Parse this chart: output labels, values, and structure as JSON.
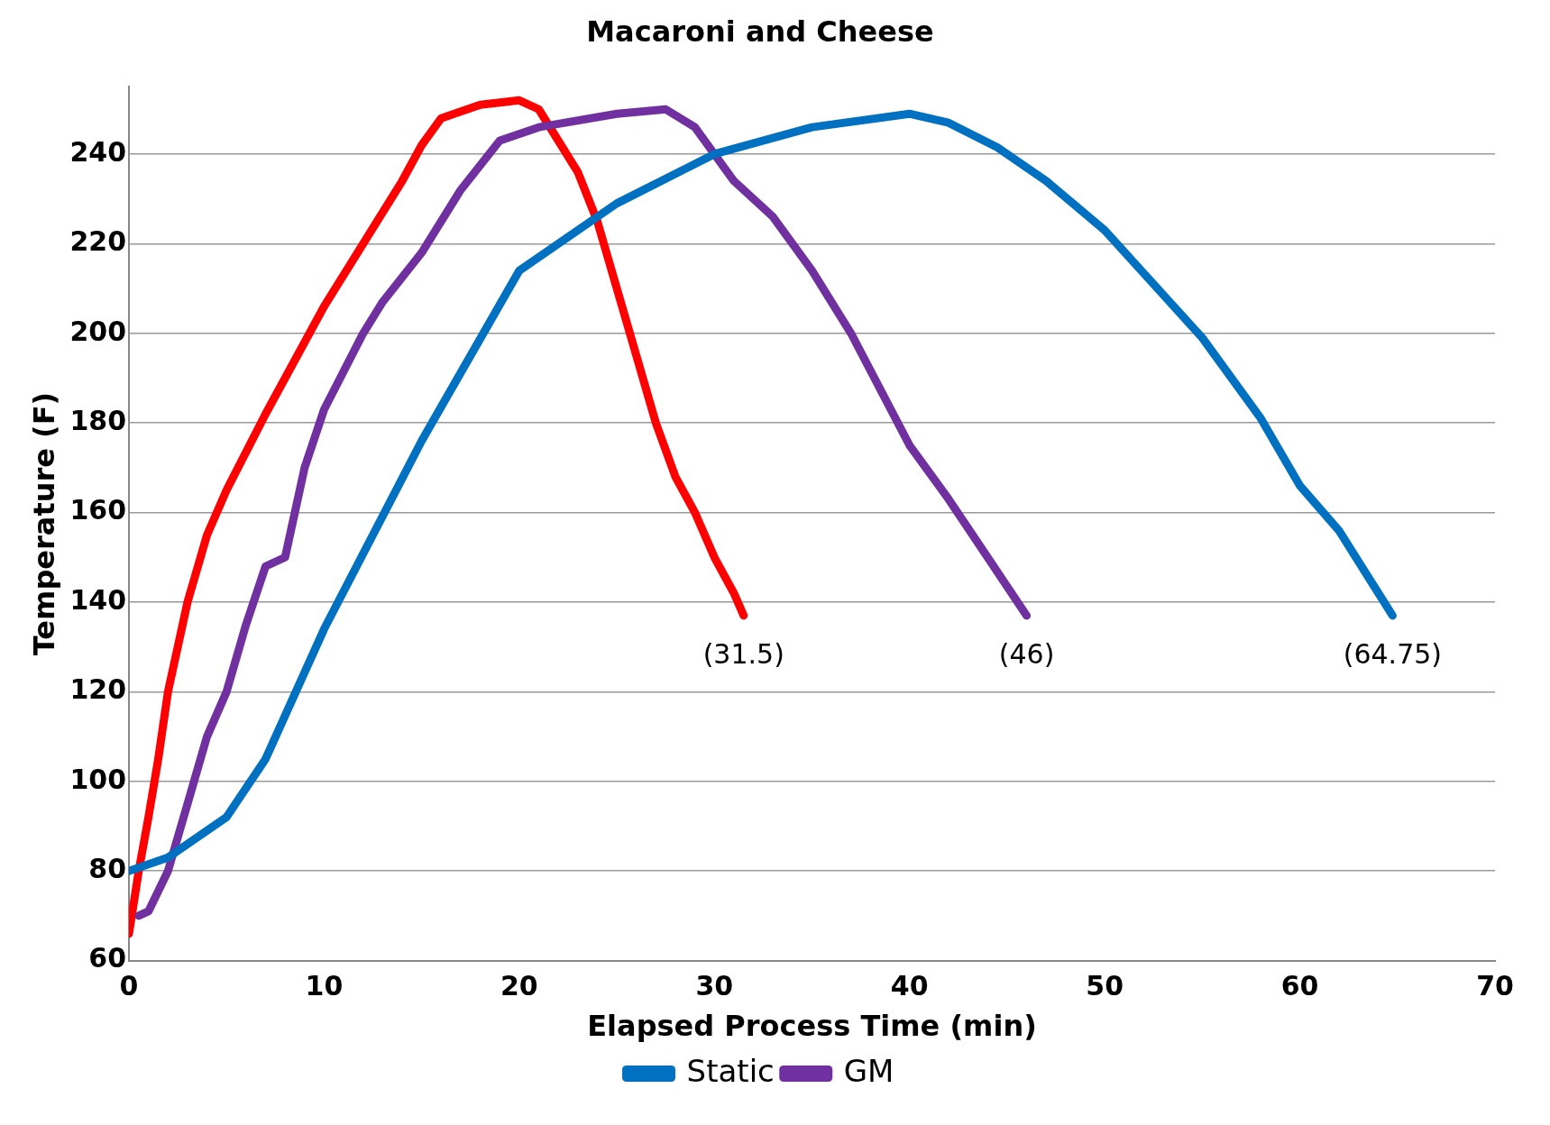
{
  "chart_data": {
    "type": "line",
    "title": "Macaroni and Cheese",
    "xlabel": "Elapsed Process Time (min)",
    "ylabel": "Temperature (F)",
    "xlim": [
      0,
      70
    ],
    "xticks": [
      0,
      10,
      20,
      30,
      40,
      50,
      60,
      70
    ],
    "ylim": [
      60,
      255
    ],
    "yticks": [
      60,
      80,
      100,
      120,
      140,
      160,
      180,
      200,
      220,
      240
    ],
    "grid": "y",
    "legend": "bottom",
    "marker": "none",
    "line_style": "solid",
    "series": [
      {
        "name": "Static",
        "color": "#0070c0",
        "x": [
          0,
          2,
          5,
          7,
          10,
          15,
          20,
          25,
          30,
          35,
          40,
          42,
          44.5,
          47,
          50,
          55,
          58,
          60,
          62,
          64.75
        ],
        "values": [
          80,
          83,
          92,
          105,
          134,
          176,
          214,
          229,
          240,
          246,
          249,
          247,
          241.5,
          234,
          223,
          199,
          181,
          166,
          156,
          137
        ]
      },
      {
        "name": "GM",
        "color": "#7030a0",
        "x": [
          0.5,
          1,
          2,
          3,
          4,
          5,
          6,
          7,
          8,
          9,
          10,
          12,
          13,
          15,
          17,
          19,
          21,
          25,
          27.5,
          29,
          31,
          33,
          35,
          37,
          40,
          42,
          44,
          46
        ],
        "values": [
          70,
          71,
          80,
          95,
          110,
          120,
          135,
          148,
          150,
          170,
          183,
          200,
          207,
          218,
          232,
          243,
          246,
          249,
          250,
          246,
          234,
          226,
          214,
          200,
          175,
          163,
          150,
          137
        ]
      },
      {
        "color": "#ff0000",
        "x": [
          0,
          0.5,
          1,
          1.5,
          2,
          3,
          4,
          5,
          7,
          10,
          12,
          14,
          15,
          16,
          18,
          20,
          21,
          23,
          24,
          25,
          26,
          27,
          28,
          29,
          30,
          31,
          31.5
        ],
        "values": [
          66,
          80,
          92,
          105,
          120,
          140,
          155,
          165,
          182,
          206,
          220,
          234,
          242,
          248,
          251,
          252,
          250,
          236,
          225,
          210,
          195,
          180,
          168,
          160,
          150,
          142,
          137
        ]
      }
    ],
    "annotations": [
      "(31.5)",
      "(46)",
      "(64.75)"
    ]
  }
}
